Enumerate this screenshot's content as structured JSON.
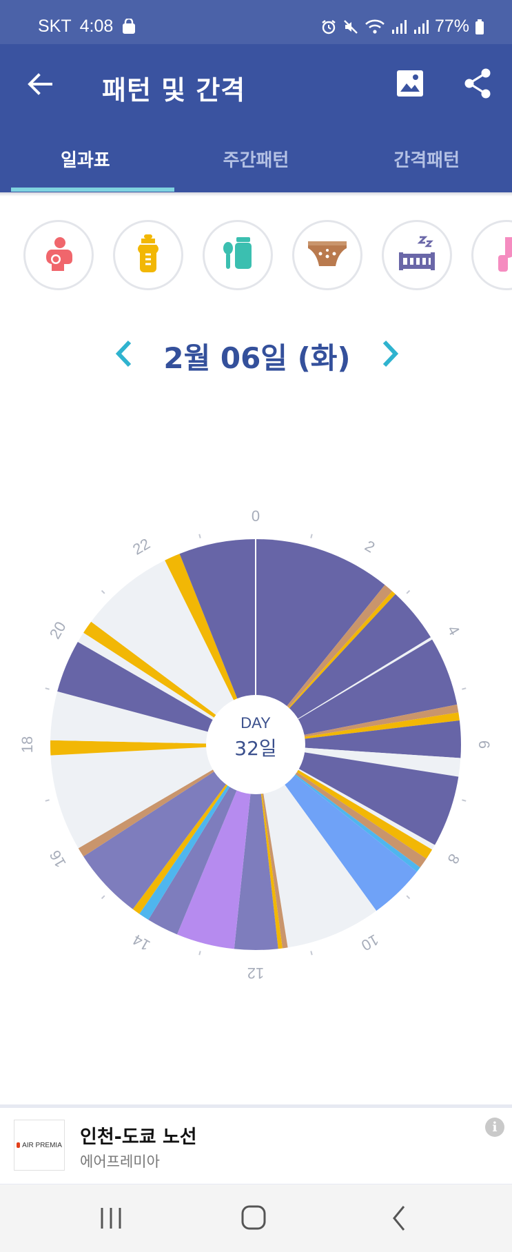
{
  "status_bar": {
    "carrier": "SKT",
    "time": "4:08",
    "battery": "77%",
    "icons": [
      "shopping-bag-icon",
      "alarm-icon",
      "mute-icon",
      "wifi-icon",
      "signal-icon",
      "signal-icon",
      "battery-icon"
    ]
  },
  "app_bar": {
    "title": "패턴 및 간격",
    "back_icon": "arrow-left-icon",
    "image_icon": "image-icon",
    "share_icon": "share-icon",
    "background": "#3a53a0"
  },
  "tabs": [
    {
      "label": "일과표",
      "active": true
    },
    {
      "label": "주간패턴",
      "active": false
    },
    {
      "label": "간격패턴",
      "active": false
    }
  ],
  "filters": [
    {
      "icon": "breastfeeding-icon",
      "color": "#f0666c"
    },
    {
      "icon": "baby-bottle-icon",
      "color": "#f2b705"
    },
    {
      "icon": "baby-food-icon",
      "color": "#3bbfb0"
    },
    {
      "icon": "diaper-icon",
      "color": "#b97a4e"
    },
    {
      "icon": "sleep-crib-icon",
      "color": "#6a67a8"
    },
    {
      "icon": "pump-icon",
      "color": "#f58cc0"
    }
  ],
  "date_nav": {
    "label": "2월 06일 (화)",
    "prev_icon": "chevron-left-icon",
    "next_icon": "chevron-right-icon"
  },
  "chart_data": {
    "type": "pie",
    "subtype": "24h-radial-daily-timeline",
    "center_label_top": "DAY",
    "center_label_bottom": "32일",
    "hour_tick_labels": [
      "0",
      "2",
      "4",
      "6",
      "8",
      "10",
      "12",
      "14",
      "16",
      "18",
      "20",
      "22"
    ],
    "colors": {
      "sleep": "#6765a7",
      "sleep_light": "#7e7dbd",
      "empty": "#eef1f5",
      "bottle": "#f2b705",
      "diaper": "#c9956c",
      "pump_purple": "#b68bef",
      "blue": "#6fa2f7",
      "lightblue": "#4fb6ee"
    },
    "segments": [
      {
        "start": 0.0,
        "end": 2.6,
        "color": "sleep"
      },
      {
        "start": 2.6,
        "end": 2.78,
        "color": "diaper"
      },
      {
        "start": 2.78,
        "end": 2.86,
        "color": "bottle"
      },
      {
        "start": 2.86,
        "end": 3.9,
        "color": "sleep"
      },
      {
        "start": 3.9,
        "end": 3.95,
        "color": "empty"
      },
      {
        "start": 3.95,
        "end": 5.25,
        "color": "sleep"
      },
      {
        "start": 5.25,
        "end": 5.4,
        "color": "diaper"
      },
      {
        "start": 5.4,
        "end": 5.55,
        "color": "bottle"
      },
      {
        "start": 5.55,
        "end": 6.25,
        "color": "sleep"
      },
      {
        "start": 6.25,
        "end": 6.6,
        "color": "empty"
      },
      {
        "start": 6.6,
        "end": 7.95,
        "color": "sleep"
      },
      {
        "start": 7.95,
        "end": 8.05,
        "color": "empty"
      },
      {
        "start": 8.05,
        "end": 8.25,
        "color": "bottle"
      },
      {
        "start": 8.25,
        "end": 8.45,
        "color": "diaper"
      },
      {
        "start": 8.45,
        "end": 8.55,
        "color": "lightblue"
      },
      {
        "start": 8.55,
        "end": 9.6,
        "color": "blue"
      },
      {
        "start": 9.6,
        "end": 11.4,
        "color": "empty"
      },
      {
        "start": 11.4,
        "end": 11.5,
        "color": "diaper"
      },
      {
        "start": 11.5,
        "end": 11.58,
        "color": "bottle"
      },
      {
        "start": 11.58,
        "end": 12.4,
        "color": "sleep_light"
      },
      {
        "start": 12.4,
        "end": 13.5,
        "color": "pump_purple"
      },
      {
        "start": 13.5,
        "end": 14.1,
        "color": "sleep_light"
      },
      {
        "start": 14.1,
        "end": 14.3,
        "color": "lightblue"
      },
      {
        "start": 14.3,
        "end": 14.45,
        "color": "bottle"
      },
      {
        "start": 14.45,
        "end": 15.8,
        "color": "sleep_light"
      },
      {
        "start": 15.8,
        "end": 15.98,
        "color": "diaper"
      },
      {
        "start": 15.98,
        "end": 17.8,
        "color": "empty"
      },
      {
        "start": 17.8,
        "end": 18.08,
        "color": "bottle"
      },
      {
        "start": 18.08,
        "end": 19.0,
        "color": "empty"
      },
      {
        "start": 19.0,
        "end": 20.0,
        "color": "sleep"
      },
      {
        "start": 20.0,
        "end": 20.2,
        "color": "empty"
      },
      {
        "start": 20.2,
        "end": 20.45,
        "color": "bottle"
      },
      {
        "start": 20.45,
        "end": 22.25,
        "color": "empty"
      },
      {
        "start": 22.25,
        "end": 22.55,
        "color": "bottle"
      },
      {
        "start": 22.55,
        "end": 24.0,
        "color": "sleep"
      }
    ]
  },
  "ad": {
    "logo_text": "AIR PREMIA",
    "title": "인천-도쿄 노선",
    "subtitle": "에어프레미아",
    "info_label": "i"
  },
  "nav_bar": {
    "recents_icon": "recents-icon",
    "home_icon": "home-icon",
    "back_icon": "back-chevron-icon"
  }
}
